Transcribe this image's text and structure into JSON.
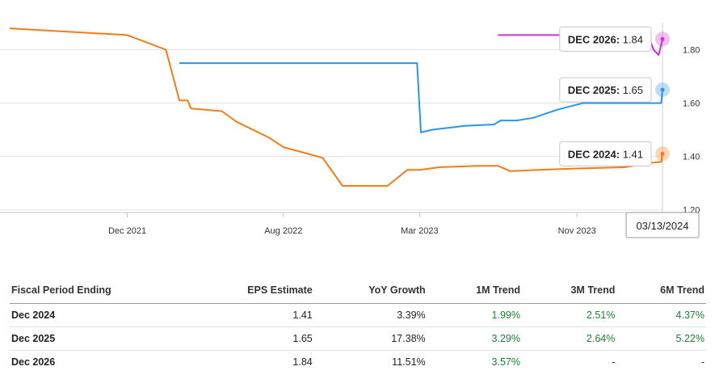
{
  "chart_data": {
    "type": "line",
    "x_ticks": [
      "Dec 2021",
      "Aug 2022",
      "Mar 2023",
      "Nov 2023"
    ],
    "y_ticks": [
      "1.80",
      "1.60",
      "1.40",
      "1.20"
    ],
    "ylim": [
      1.19,
      1.95
    ],
    "xlim": [
      "2021-06-01",
      "2024-03-13"
    ],
    "grid": "horizontal",
    "series": [
      {
        "name": "DEC 2024",
        "color": "#f57c14",
        "points": [
          [
            "2021-06-01",
            1.88
          ],
          [
            "2021-12-01",
            1.855
          ],
          [
            "2022-01-30",
            1.8
          ],
          [
            "2022-02-20",
            1.61
          ],
          [
            "2022-03-05",
            1.61
          ],
          [
            "2022-03-10",
            1.58
          ],
          [
            "2022-04-01",
            1.575
          ],
          [
            "2022-04-27",
            1.57
          ],
          [
            "2022-05-20",
            1.53
          ],
          [
            "2022-07-10",
            1.47
          ],
          [
            "2022-08-01",
            1.435
          ],
          [
            "2022-10-01",
            1.395
          ],
          [
            "2022-11-01",
            1.29
          ],
          [
            "2023-01-10",
            1.29
          ],
          [
            "2023-02-10",
            1.35
          ],
          [
            "2023-03-01",
            1.35
          ],
          [
            "2023-04-01",
            1.36
          ],
          [
            "2023-06-01",
            1.365
          ],
          [
            "2023-07-01",
            1.365
          ],
          [
            "2023-07-20",
            1.345
          ],
          [
            "2023-09-01",
            1.35
          ],
          [
            "2023-11-01",
            1.355
          ],
          [
            "2024-01-15",
            1.36
          ],
          [
            "2024-02-20",
            1.375
          ],
          [
            "2024-03-11",
            1.38
          ],
          [
            "2024-03-13",
            1.41
          ]
        ]
      },
      {
        "name": "DEC 2025",
        "color": "#2c96e6",
        "points": [
          [
            "2022-02-20",
            1.75
          ],
          [
            "2023-02-25",
            1.75
          ],
          [
            "2023-03-03",
            1.49
          ],
          [
            "2023-03-20",
            1.5
          ],
          [
            "2023-05-10",
            1.515
          ],
          [
            "2023-06-25",
            1.52
          ],
          [
            "2023-07-05",
            1.535
          ],
          [
            "2023-07-30",
            1.535
          ],
          [
            "2023-08-25",
            1.545
          ],
          [
            "2023-10-01",
            1.575
          ],
          [
            "2023-11-10",
            1.6
          ],
          [
            "2024-03-11",
            1.6
          ],
          [
            "2024-03-13",
            1.65
          ]
        ]
      },
      {
        "name": "DEC 2026",
        "color": "#cc33cc",
        "points": [
          [
            "2023-07-01",
            1.855
          ],
          [
            "2024-02-20",
            1.855
          ],
          [
            "2024-02-28",
            1.8
          ],
          [
            "2024-03-07",
            1.78
          ],
          [
            "2024-03-13",
            1.84
          ]
        ]
      }
    ],
    "tooltips": [
      {
        "series": "DEC 2026",
        "label": "DEC 2026:",
        "value": "1.84"
      },
      {
        "series": "DEC 2025",
        "label": "DEC 2025:",
        "value": "1.65"
      },
      {
        "series": "DEC 2024",
        "label": "DEC 2024:",
        "value": "1.41"
      }
    ],
    "crosshair_date": "03/13/2024"
  },
  "table": {
    "headers": [
      "Fiscal Period Ending",
      "EPS Estimate",
      "YoY Growth",
      "1M Trend",
      "3M Trend",
      "6M Trend"
    ],
    "rows": [
      [
        "Dec 2024",
        "1.41",
        "3.39%",
        "1.99%",
        "2.51%",
        "4.37%"
      ],
      [
        "Dec 2025",
        "1.65",
        "17.38%",
        "3.29%",
        "2.64%",
        "5.22%"
      ],
      [
        "Dec 2026",
        "1.84",
        "11.51%",
        "3.57%",
        "-",
        "-"
      ]
    ]
  }
}
